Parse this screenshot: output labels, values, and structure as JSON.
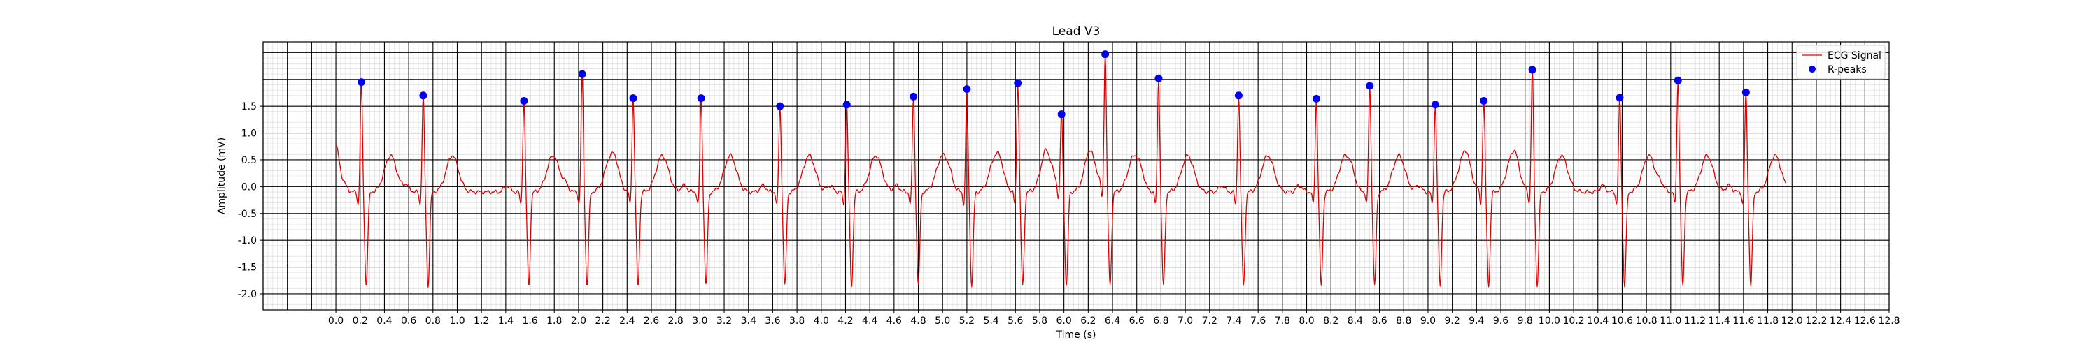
{
  "chart_data": {
    "type": "line",
    "title": "Lead V3",
    "xlabel": "Time (s)",
    "ylabel": "Amplitude (mV)",
    "xlim": [
      -0.6,
      12.8
    ],
    "ylim": [
      -2.3,
      2.7
    ],
    "x_ticks": [
      0.0,
      0.2,
      0.4,
      0.6,
      0.8,
      1.0,
      1.2,
      1.4,
      1.6,
      1.8,
      2.0,
      2.2,
      2.4,
      2.6,
      2.8,
      3.0,
      3.2,
      3.4,
      3.6,
      3.8,
      4.0,
      4.2,
      4.4,
      4.6,
      4.8,
      5.0,
      5.2,
      5.4,
      5.6,
      5.8,
      6.0,
      6.2,
      6.4,
      6.6,
      6.8,
      7.0,
      7.2,
      7.4,
      7.6,
      7.8,
      8.0,
      8.2,
      8.4,
      8.6,
      8.8,
      9.0,
      9.2,
      9.4,
      9.6,
      9.8,
      10.0,
      10.2,
      10.4,
      10.6,
      10.8,
      11.0,
      11.2,
      11.4,
      11.6,
      11.8,
      12.0,
      12.2,
      12.4,
      12.6,
      12.8
    ],
    "y_ticks": [
      -2.0,
      -1.5,
      -1.0,
      -0.5,
      0.0,
      0.5,
      1.0,
      1.5
    ],
    "grid": true,
    "legend_position": "top-right",
    "legend": [
      {
        "label": "ECG Signal",
        "color": "#e00000",
        "kind": "line"
      },
      {
        "label": "R-peaks",
        "color": "#0000ee",
        "kind": "marker"
      }
    ],
    "series": [
      {
        "name": "ECG Signal",
        "color": "#e00000",
        "start": 0.0,
        "end": 11.95,
        "baseline": -0.1,
        "beats": [
          {
            "r": 0.21,
            "amp": 1.95
          },
          {
            "r": 0.72,
            "amp": 1.7
          },
          {
            "r": 1.55,
            "amp": 1.6
          },
          {
            "r": 2.03,
            "amp": 2.1
          },
          {
            "r": 2.45,
            "amp": 1.65
          },
          {
            "r": 3.01,
            "amp": 1.65
          },
          {
            "r": 3.66,
            "amp": 1.5
          },
          {
            "r": 4.21,
            "amp": 1.53
          },
          {
            "r": 4.76,
            "amp": 1.68
          },
          {
            "r": 5.2,
            "amp": 1.82
          },
          {
            "r": 5.62,
            "amp": 1.93
          },
          {
            "r": 5.98,
            "amp": 1.35
          },
          {
            "r": 6.34,
            "amp": 2.47
          },
          {
            "r": 6.78,
            "amp": 2.02
          },
          {
            "r": 7.44,
            "amp": 1.7
          },
          {
            "r": 8.08,
            "amp": 1.64
          },
          {
            "r": 8.52,
            "amp": 1.88
          },
          {
            "r": 9.06,
            "amp": 1.53
          },
          {
            "r": 9.46,
            "amp": 1.6
          },
          {
            "r": 9.86,
            "amp": 2.18
          },
          {
            "r": 10.58,
            "amp": 1.66
          },
          {
            "r": 11.06,
            "amp": 1.98
          },
          {
            "r": 11.62,
            "amp": 1.76
          }
        ]
      },
      {
        "name": "R-peaks",
        "color": "#0000ee",
        "x": [
          0.21,
          0.72,
          1.55,
          2.03,
          2.45,
          3.01,
          3.66,
          4.21,
          4.76,
          5.2,
          5.62,
          5.98,
          6.34,
          6.78,
          7.44,
          8.08,
          8.52,
          9.06,
          9.46,
          9.86,
          10.58,
          11.06,
          11.62
        ],
        "y": [
          1.95,
          1.7,
          1.6,
          2.1,
          1.65,
          1.65,
          1.5,
          1.53,
          1.68,
          1.82,
          1.93,
          1.35,
          2.47,
          2.02,
          1.7,
          1.64,
          1.88,
          1.53,
          1.6,
          2.18,
          1.66,
          1.98,
          1.76
        ]
      }
    ]
  }
}
